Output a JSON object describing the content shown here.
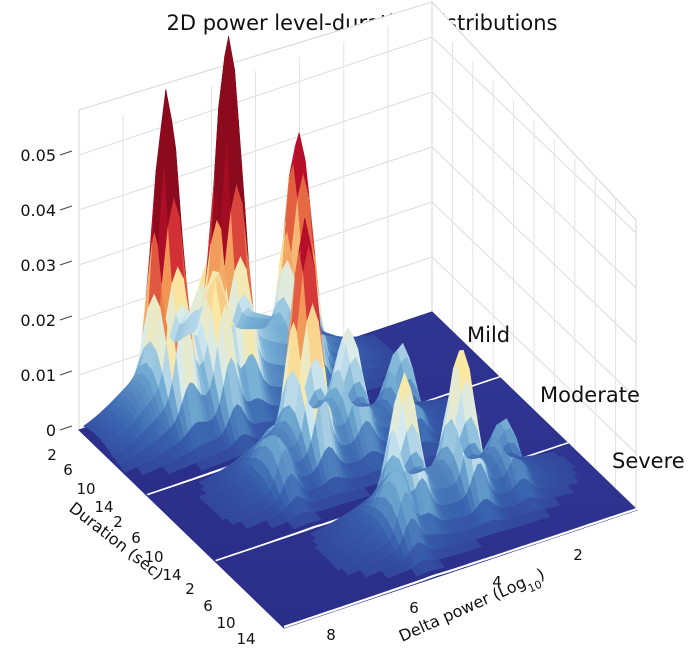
{
  "chart_data": {
    "type": "surface",
    "title": "2D power level-duration distributions",
    "xlabel": "Duration (sec)",
    "ylabel_main": "Delta power (Log",
    "ylabel_sub": "10",
    "ylabel_end": ")",
    "zlim": [
      0,
      0.05
    ],
    "z_ticks": [
      "0",
      "0.01",
      "0.02",
      "0.03",
      "0.04",
      "0.05"
    ],
    "duration_ticks": [
      "2",
      "6",
      "10",
      "14"
    ],
    "power_ticks": [
      "2",
      "4",
      "6",
      "8"
    ],
    "grid": true,
    "colormap": [
      "#2c2f8c",
      "#3a66b0",
      "#74aed4",
      "#d6ecf2",
      "#fbe8a1",
      "#f08a4b",
      "#c8102e",
      "#8b0a1d"
    ],
    "series": [
      {
        "name": "Mild",
        "peaks": [
          {
            "duration": 4,
            "power": 7.2,
            "height": 0.046
          },
          {
            "duration": 4,
            "power": 5.8,
            "height": 0.05
          },
          {
            "duration": 4,
            "power": 4.2,
            "height": 0.035
          },
          {
            "duration": 8,
            "power": 6.4,
            "height": 0.018
          }
        ]
      },
      {
        "name": "Moderate",
        "peaks": [
          {
            "duration": 4,
            "power": 5.6,
            "height": 0.035
          },
          {
            "duration": 4,
            "power": 4.6,
            "height": 0.014
          },
          {
            "duration": 4,
            "power": 3.4,
            "height": 0.012
          },
          {
            "duration": 8,
            "power": 6.6,
            "height": 0.008
          }
        ]
      },
      {
        "name": "Severe",
        "peaks": [
          {
            "duration": 4,
            "power": 4.9,
            "height": 0.02
          },
          {
            "duration": 4,
            "power": 3.6,
            "height": 0.021
          },
          {
            "duration": 4,
            "power": 2.6,
            "height": 0.008
          },
          {
            "duration": 8,
            "power": 5.4,
            "height": 0.009
          }
        ]
      }
    ]
  }
}
